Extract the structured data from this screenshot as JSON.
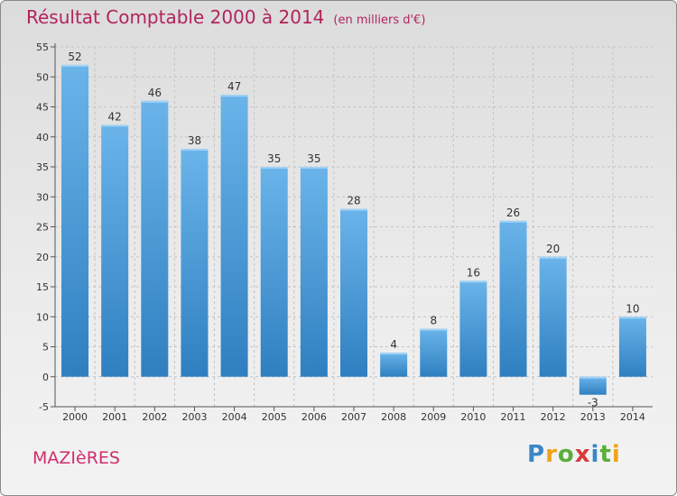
{
  "header": {
    "title": "Résultat Comptable 2000 à 2014",
    "unit": "(en milliers d'€)"
  },
  "commune": "MAZIèRES",
  "logo": {
    "letters": [
      "P",
      "r",
      "o",
      "x",
      "i",
      "t",
      "i"
    ],
    "colors": [
      "#3a86c8",
      "#f0a21a",
      "#5aae3a",
      "#d93a3a",
      "#3a86c8",
      "#5aae3a",
      "#f0a21a"
    ]
  },
  "colors": {
    "bar_light": "#6ab4ea",
    "bar_dark": "#2f7fc0",
    "grid": "#c4c4c4",
    "title": "#b1245a"
  },
  "chart_data": {
    "type": "bar",
    "title": "Résultat Comptable 2000 à 2014",
    "subtitle": "(en milliers d'€)",
    "categories": [
      "2000",
      "2001",
      "2002",
      "2003",
      "2004",
      "2005",
      "2006",
      "2007",
      "2008",
      "2009",
      "2010",
      "2011",
      "2012",
      "2013",
      "2014"
    ],
    "values": [
      52,
      42,
      46,
      38,
      47,
      35,
      35,
      28,
      4,
      8,
      16,
      26,
      20,
      -3,
      10
    ],
    "value_labels": [
      "52",
      "42",
      "46",
      "38",
      "47",
      "35",
      "35",
      "28",
      "4",
      "8",
      "16",
      "26",
      "20",
      "-3",
      "10"
    ],
    "yticks": [
      "-5",
      "0",
      "5",
      "10",
      "15",
      "20",
      "25",
      "30",
      "35",
      "40",
      "45",
      "50",
      "55"
    ],
    "ylim": [
      -5,
      55
    ],
    "grid": true
  }
}
